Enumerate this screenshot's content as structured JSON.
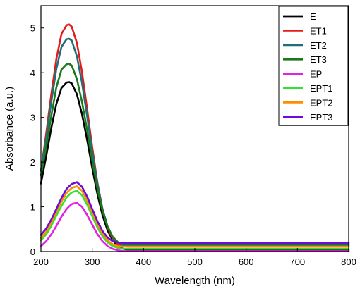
{
  "chart_data": {
    "type": "line",
    "title": "",
    "xlabel": "Wavelength (nm)",
    "ylabel": "Absorbance (a.u.)",
    "xlim": [
      200,
      800
    ],
    "ylim": [
      0,
      5.5
    ],
    "x_ticks": [
      200,
      300,
      400,
      500,
      600,
      700,
      800
    ],
    "y_ticks": [
      0,
      1,
      2,
      3,
      4,
      5
    ],
    "grid": false,
    "legend_position": "top-right",
    "x": [
      200,
      210,
      220,
      230,
      240,
      250,
      255,
      260,
      270,
      280,
      290,
      300,
      310,
      320,
      330,
      340,
      350,
      360,
      370,
      380,
      390,
      400,
      450,
      500,
      600,
      700,
      800
    ],
    "series": [
      {
        "name": "E",
        "color": "#000000",
        "values": [
          1.52,
          2.12,
          2.75,
          3.3,
          3.66,
          3.78,
          3.79,
          3.76,
          3.52,
          3.08,
          2.5,
          1.87,
          1.29,
          0.81,
          0.47,
          0.25,
          0.12,
          0.06,
          0.04,
          0.03,
          0.03,
          0.03,
          0.03,
          0.03,
          0.03,
          0.03,
          0.03
        ]
      },
      {
        "name": "ET1",
        "color": "#e41a1c",
        "values": [
          1.8,
          2.62,
          3.5,
          4.3,
          4.87,
          5.06,
          5.08,
          5.03,
          4.67,
          4.02,
          3.19,
          2.33,
          1.55,
          0.95,
          0.54,
          0.29,
          0.16,
          0.12,
          0.11,
          0.11,
          0.11,
          0.11,
          0.11,
          0.11,
          0.11,
          0.11,
          0.11
        ]
      },
      {
        "name": "ET2",
        "color": "#1f6f78",
        "values": [
          1.8,
          2.52,
          3.33,
          4.08,
          4.58,
          4.75,
          4.76,
          4.72,
          4.37,
          3.78,
          3.03,
          2.23,
          1.52,
          0.95,
          0.56,
          0.32,
          0.19,
          0.15,
          0.14,
          0.14,
          0.14,
          0.14,
          0.14,
          0.14,
          0.14,
          0.14,
          0.14
        ]
      },
      {
        "name": "ET3",
        "color": "#1a7a1a",
        "values": [
          1.7,
          2.33,
          3.02,
          3.67,
          4.07,
          4.19,
          4.2,
          4.16,
          3.86,
          3.35,
          2.72,
          2.03,
          1.41,
          0.91,
          0.55,
          0.33,
          0.21,
          0.17,
          0.16,
          0.16,
          0.16,
          0.16,
          0.16,
          0.16,
          0.16,
          0.16,
          0.16
        ]
      },
      {
        "name": "EP",
        "color": "#e51fe5",
        "values": [
          0.12,
          0.23,
          0.38,
          0.57,
          0.78,
          0.95,
          1.01,
          1.06,
          1.09,
          1.0,
          0.82,
          0.6,
          0.39,
          0.23,
          0.12,
          0.06,
          0.03,
          0.01,
          0.01,
          0.01,
          0.01,
          0.01,
          0.01,
          0.01,
          0.01,
          0.01,
          0.01
        ]
      },
      {
        "name": "EPT1",
        "color": "#33e033",
        "values": [
          0.25,
          0.38,
          0.57,
          0.8,
          1.02,
          1.21,
          1.27,
          1.32,
          1.36,
          1.26,
          1.05,
          0.79,
          0.54,
          0.34,
          0.2,
          0.12,
          0.08,
          0.06,
          0.06,
          0.06,
          0.06,
          0.06,
          0.06,
          0.06,
          0.06,
          0.06,
          0.06
        ]
      },
      {
        "name": "EPT2",
        "color": "#ff8c00",
        "values": [
          0.3,
          0.44,
          0.64,
          0.88,
          1.12,
          1.31,
          1.37,
          1.42,
          1.46,
          1.36,
          1.14,
          0.87,
          0.61,
          0.4,
          0.25,
          0.16,
          0.12,
          0.11,
          0.11,
          0.11,
          0.11,
          0.11,
          0.11,
          0.11,
          0.11,
          0.11,
          0.11
        ]
      },
      {
        "name": "EPT3",
        "color": "#6a0dd9",
        "values": [
          0.37,
          0.51,
          0.71,
          0.95,
          1.2,
          1.4,
          1.46,
          1.51,
          1.55,
          1.45,
          1.23,
          0.95,
          0.68,
          0.46,
          0.31,
          0.23,
          0.2,
          0.19,
          0.19,
          0.19,
          0.19,
          0.19,
          0.19,
          0.19,
          0.19,
          0.19,
          0.19
        ]
      }
    ]
  }
}
